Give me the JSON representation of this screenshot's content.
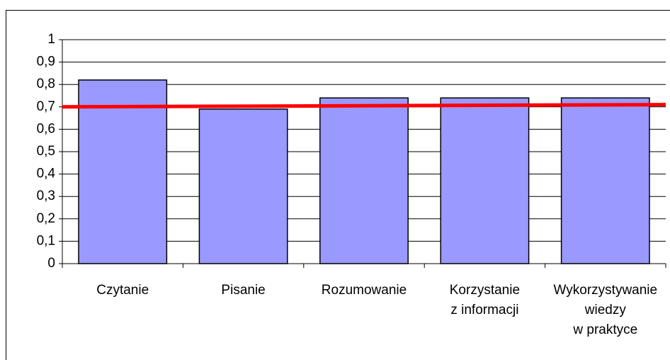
{
  "chart_data": {
    "type": "bar",
    "categories": [
      "Czytanie",
      "Pisanie",
      "Rozumowanie",
      "Korzystanie\nz informacji",
      "Wykorzystywanie\nwiedzy\nw praktyce"
    ],
    "values": [
      0.82,
      0.69,
      0.74,
      0.74,
      0.74
    ],
    "color": "#9999ff",
    "reference_line": {
      "color": "#ff0000",
      "values": [
        0.7,
        0.71
      ]
    },
    "ylim": [
      0,
      1
    ],
    "yticks": [
      0,
      {
        "value": 0.1,
        "label": "0,1"
      },
      {
        "value": 0.2,
        "label": "0,2"
      },
      {
        "value": 0.3,
        "label": "0,3"
      },
      {
        "value": 0.4,
        "label": "0,4"
      },
      {
        "value": 0.5,
        "label": "0,5"
      },
      {
        "value": 0.6,
        "label": "0,6"
      },
      {
        "value": 0.7,
        "label": "0,7"
      },
      {
        "value": 0.8,
        "label": "0,8"
      },
      {
        "value": 0.9,
        "label": "0,9"
      },
      1
    ],
    "grid": true
  }
}
